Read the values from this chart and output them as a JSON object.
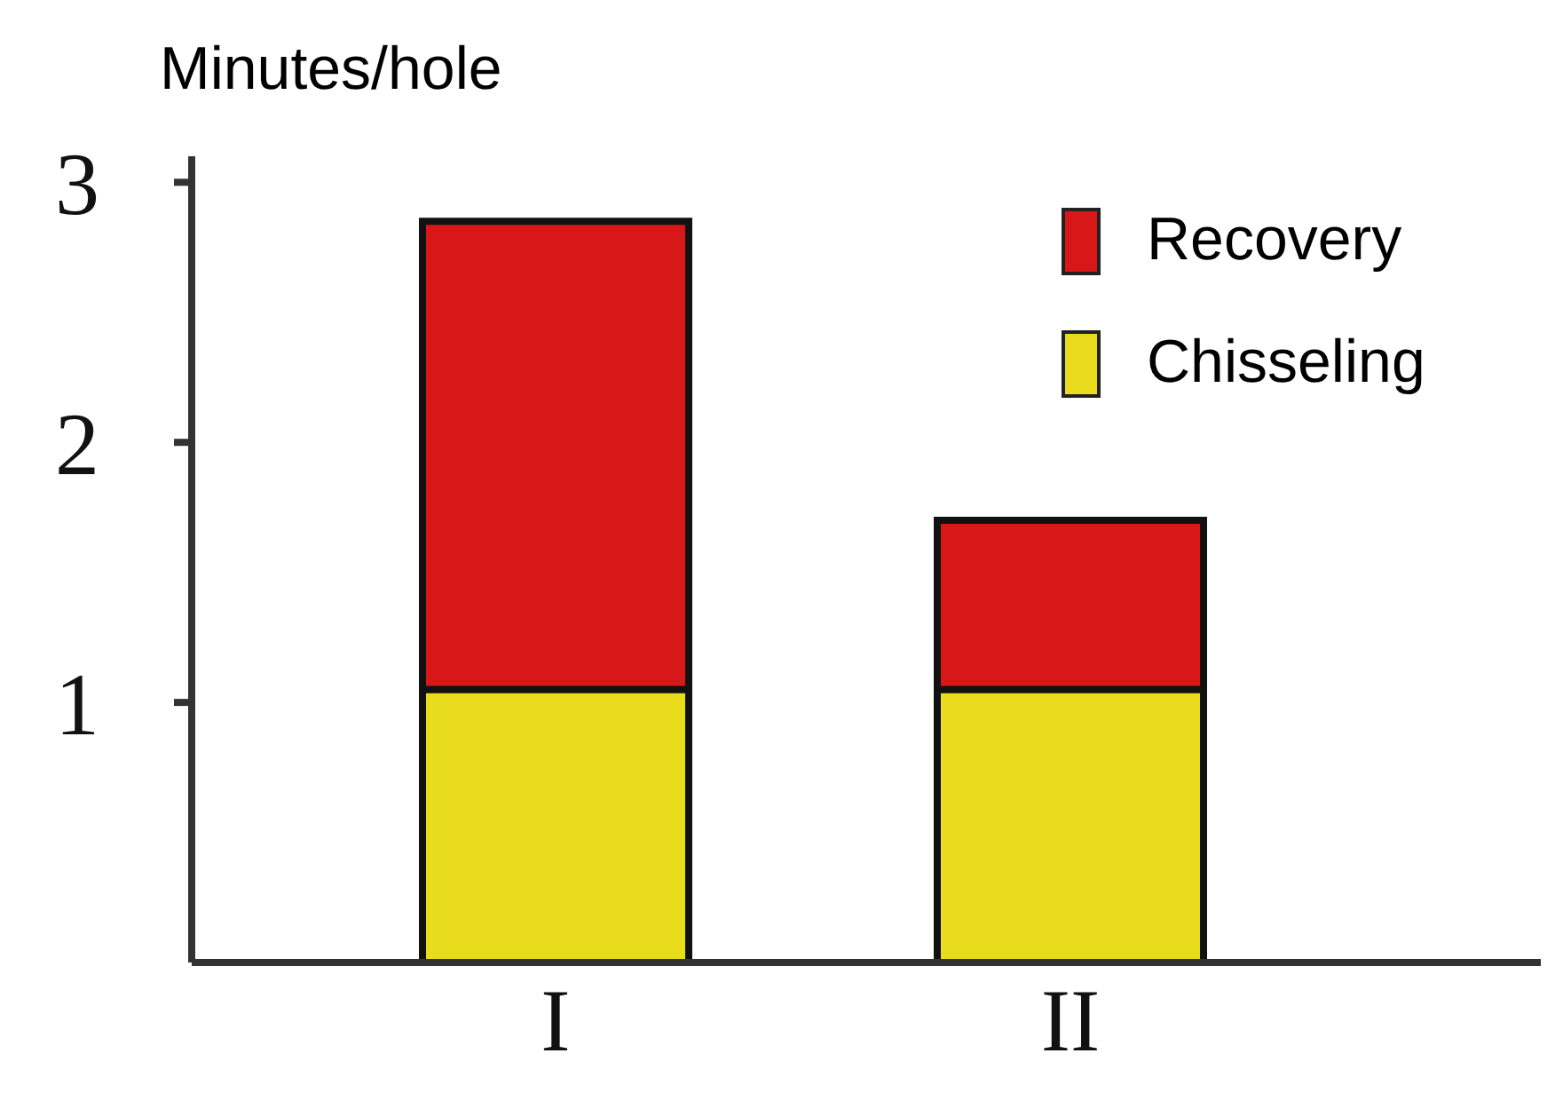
{
  "chart_data": {
    "type": "bar",
    "ylabel": "Minutes/hole",
    "categories": [
      "I",
      "II"
    ],
    "stacked": true,
    "series": [
      {
        "name": "Chisseling",
        "color": "#e8dc1c",
        "values": [
          1.05,
          1.05
        ]
      },
      {
        "name": "Recovery",
        "color": "#d81818",
        "values": [
          1.8,
          0.65
        ]
      }
    ],
    "ylim": [
      0,
      3.1
    ],
    "yticks": [
      1,
      2,
      3
    ],
    "legend": "top right",
    "grid": false
  }
}
